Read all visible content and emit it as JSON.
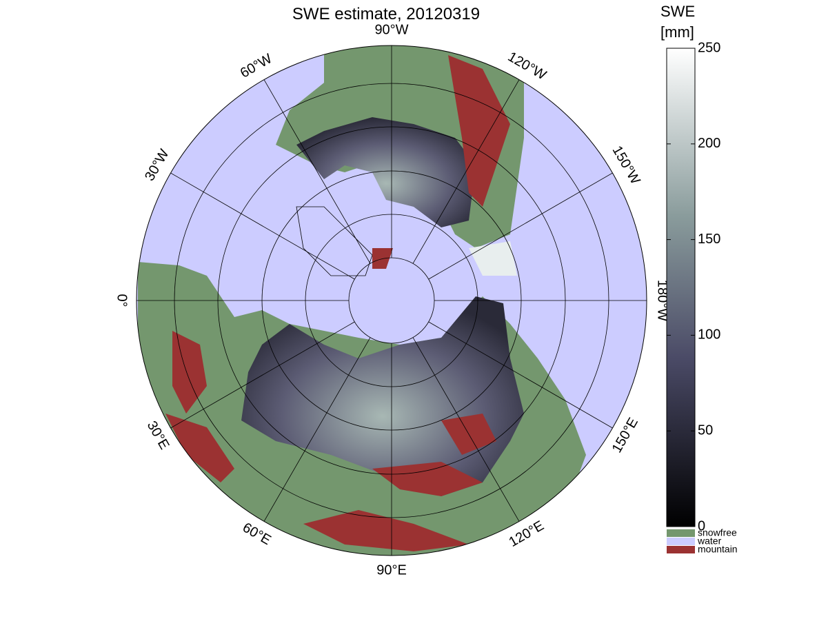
{
  "map": {
    "title": "SWE estimate, 20120319",
    "longitude_labels": [
      "90°W",
      "120°W",
      "150°W",
      "180°W",
      "150°E",
      "120°E",
      "90°E",
      "60°E",
      "30°E",
      "0°",
      "30°W",
      "60°W"
    ],
    "colorbar": {
      "label_lines": [
        "SWE",
        "[mm]"
      ],
      "lim": [
        0,
        250
      ],
      "ticks": [
        0,
        50,
        100,
        150,
        200,
        250
      ]
    },
    "legend": [
      {
        "name": "snowfree",
        "color": "#74976e"
      },
      {
        "name": "water",
        "color": "#ccccff"
      },
      {
        "name": "mountain",
        "color": "#9b3232"
      }
    ]
  }
}
